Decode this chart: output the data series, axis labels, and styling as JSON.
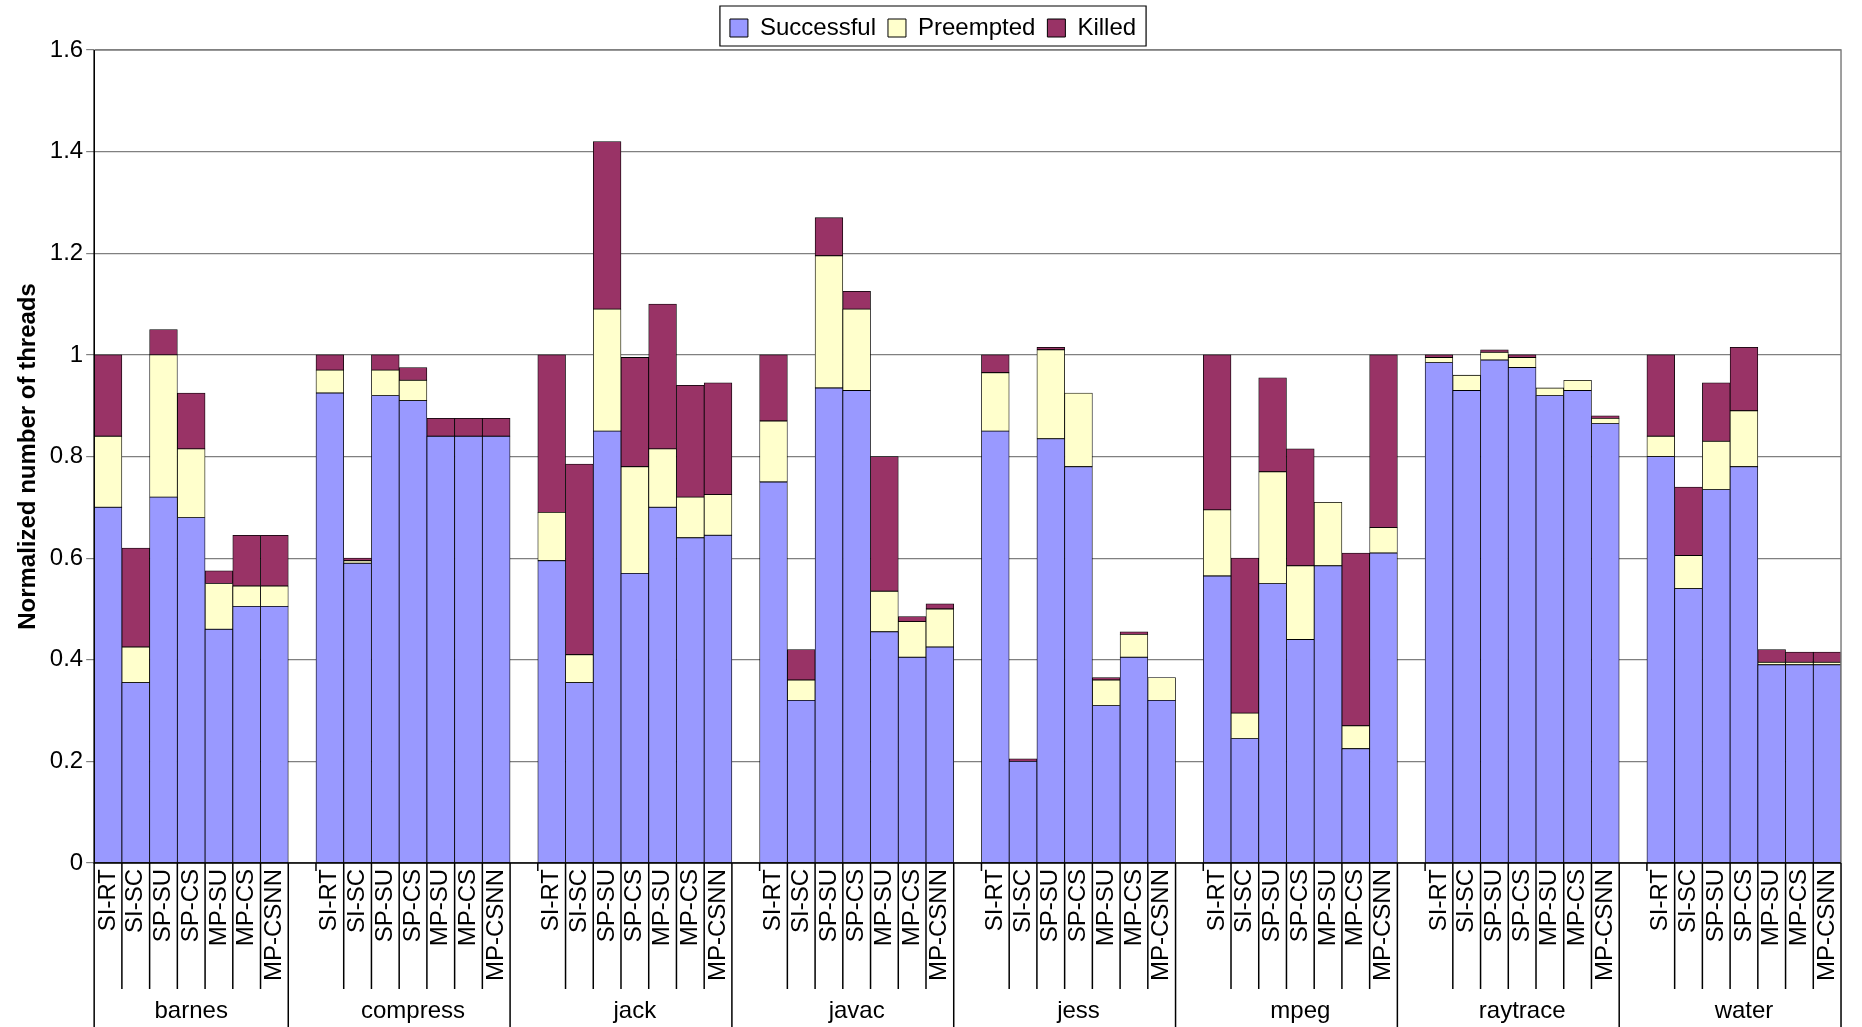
{
  "chart_data": {
    "type": "bar",
    "stacked": true,
    "ylabel": "Normalized number of threads",
    "categories": [
      "SI-RT",
      "SI-SC",
      "SP-SU",
      "SP-CS",
      "MP-SU",
      "MP-CS",
      "MP-CSNN",
      null,
      "SI-RT",
      "SI-SC",
      "SP-SU",
      "SP-CS",
      "MP-SU",
      "MP-CS",
      "MP-CSNN",
      null,
      "SI-RT",
      "SI-SC",
      "SP-SU",
      "SP-CS",
      "MP-SU",
      "MP-CS",
      "MP-CSNN",
      null,
      "SI-RT",
      "SI-SC",
      "SP-SU",
      "SP-CS",
      "MP-SU",
      "MP-CS",
      "MP-CSNN",
      null,
      "SI-RT",
      "SI-SC",
      "SP-SU",
      "SP-CS",
      "MP-SU",
      "MP-CS",
      "MP-CSNN",
      null,
      "SI-RT",
      "SI-SC",
      "SP-SU",
      "SP-CS",
      "MP-SU",
      "MP-CS",
      "MP-CSNN",
      null,
      "SI-RT",
      "SI-SC",
      "SP-SU",
      "SP-CS",
      "MP-SU",
      "MP-CS",
      "MP-CSNN",
      null,
      "SI-RT",
      "SI-SC",
      "SP-SU",
      "SP-CS",
      "MP-SU",
      "MP-CS",
      "MP-CSNN"
    ],
    "annotations": [
      "barnes",
      "compress",
      "jack",
      "javac",
      "jess",
      "mpeg",
      "raytrace",
      "water"
    ],
    "series": [
      {
        "name": "Successful",
        "color": "#9999ff",
        "values": [
          0.7,
          0.355,
          0.72,
          0.68,
          0.46,
          0.505,
          0.505,
          null,
          0.925,
          0.59,
          0.92,
          0.91,
          0.84,
          0.84,
          0.84,
          null,
          0.595,
          0.355,
          0.85,
          0.57,
          0.7,
          0.64,
          0.645,
          null,
          0.75,
          0.32,
          0.935,
          0.93,
          0.455,
          0.405,
          0.425,
          null,
          0.85,
          0.2,
          0.835,
          0.78,
          0.31,
          0.405,
          0.32,
          null,
          0.565,
          0.245,
          0.55,
          0.44,
          0.585,
          0.225,
          0.61,
          null,
          0.985,
          0.93,
          0.99,
          0.975,
          0.92,
          0.93,
          0.865,
          null,
          0.8,
          0.54,
          0.735,
          0.78,
          0.39,
          0.39,
          0.39
        ]
      },
      {
        "name": "Preempted",
        "color": "#ffffcc",
        "values": [
          0.14,
          0.07,
          0.28,
          0.135,
          0.09,
          0.04,
          0.04,
          null,
          0.045,
          0.005,
          0.05,
          0.04,
          0,
          0,
          0,
          null,
          0.095,
          0.055,
          0.24,
          0.21,
          0.115,
          0.08,
          0.08,
          null,
          0.12,
          0.04,
          0.26,
          0.16,
          0.08,
          0.07,
          0.075,
          null,
          0.115,
          0,
          0.175,
          0.145,
          0.05,
          0.045,
          0.045,
          null,
          0.13,
          0.05,
          0.22,
          0.145,
          0.125,
          0.045,
          0.05,
          null,
          0.01,
          0.03,
          0.015,
          0.02,
          0.015,
          0.02,
          0.01,
          null,
          0.04,
          0.065,
          0.095,
          0.11,
          0.005,
          0.005,
          0.005
        ]
      },
      {
        "name": "Killed",
        "color": "#993366",
        "values": [
          0.16,
          0.195,
          0.05,
          0.11,
          0.025,
          0.1,
          0.1,
          null,
          0.03,
          0.005,
          0.03,
          0.025,
          0.035,
          0.035,
          0.035,
          null,
          0.31,
          0.375,
          0.33,
          0.215,
          0.285,
          0.22,
          0.22,
          null,
          0.13,
          0.06,
          0.075,
          0.035,
          0.265,
          0.01,
          0.01,
          null,
          0.035,
          0.005,
          0.005,
          0,
          0.005,
          0.005,
          0,
          null,
          0.305,
          0.305,
          0.185,
          0.23,
          0,
          0.34,
          0.34,
          null,
          0.005,
          0,
          0.005,
          0.005,
          0,
          0,
          0.005,
          null,
          0.16,
          0.135,
          0.115,
          0.125,
          0.025,
          0.02,
          0.02
        ]
      }
    ],
    "ylim": [
      0,
      1.6
    ],
    "yticks": [
      0,
      0.2,
      0.4,
      0.6,
      0.8,
      1,
      1.2,
      1.4,
      1.6
    ],
    "grid": "y",
    "legend": "top"
  }
}
